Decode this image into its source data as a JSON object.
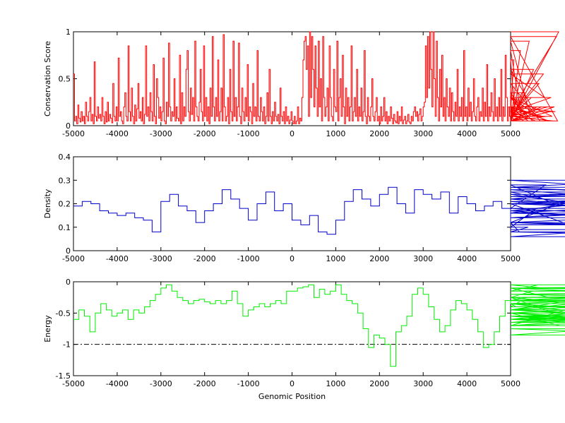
{
  "chart_data": [
    {
      "type": "line",
      "ylabel": "Conservation Score",
      "xlabel": "",
      "xlim": [
        -5000,
        5000
      ],
      "ylim": [
        0,
        1
      ],
      "xticks": [
        "-5000",
        "-4000",
        "-3000",
        "-2000",
        "-1000",
        "0",
        "1000",
        "2000",
        "3000",
        "4000",
        "5000"
      ],
      "yticks": [
        "0",
        "0.5",
        "1"
      ],
      "ytick_values": [
        0,
        0.5,
        1
      ],
      "series": [
        {
          "color": "#ff0000",
          "x_step": 25,
          "x_start": -5000,
          "values": [
            0.55,
            0.05,
            0.1,
            0.02,
            0.22,
            0.08,
            0.04,
            0.15,
            0.05,
            0.1,
            0.02,
            0.25,
            0.1,
            0.05,
            0.15,
            0.3,
            0.05,
            0.12,
            0.02,
            0.68,
            0.1,
            0.05,
            0.2,
            0.08,
            0.12,
            0.05,
            0.3,
            0.1,
            0.02,
            0.15,
            0.04,
            0.25,
            0.05,
            0.12,
            0.08,
            0.03,
            0.45,
            0.1,
            0.05,
            0.2,
            0.05,
            0.72,
            0.1,
            0.15,
            0.05,
            0.02,
            0.2,
            0.35,
            0.1,
            0.05,
            0.85,
            0.15,
            0.05,
            0.4,
            0.1,
            0.02,
            0.22,
            0.05,
            0.18,
            0.45,
            0.08,
            0.15,
            0.05,
            0.3,
            0.02,
            0.12,
            0.85,
            0.1,
            0.2,
            0.05,
            0.35,
            0.15,
            0.05,
            0.65,
            0.1,
            0.02,
            0.5,
            0.3,
            0.08,
            0.2,
            0.05,
            0.15,
            0.72,
            0.05,
            0.02,
            0.25,
            0.1,
            0.88,
            0.2,
            0.05,
            0.15,
            0.1,
            0.5,
            0.05,
            0.2,
            0.08,
            0.05,
            0.75,
            0.02,
            0.35,
            0.05,
            0.2,
            0.1,
            0.6,
            0.8,
            0.15,
            0.05,
            0.4,
            0.12,
            0.3,
            0.05,
            0.9,
            0.2,
            0.1,
            0.05,
            0.25,
            0.6,
            0.15,
            0.05,
            0.85,
            0.1,
            0.3,
            0.05,
            0.2,
            0.02,
            0.4,
            0.1,
            0.95,
            0.2,
            0.05,
            0.3,
            0.1,
            0.7,
            0.05,
            0.15,
            0.4,
            0.05,
            0.97,
            0.2,
            0.05,
            0.1,
            0.3,
            0.02,
            0.6,
            0.15,
            0.05,
            0.9,
            0.1,
            0.3,
            0.05,
            0.2,
            0.88,
            0.1,
            0.02,
            0.4,
            0.15,
            0.05,
            0.3,
            0.1,
            0.65,
            0.05,
            0.2,
            0.15,
            0.02,
            0.45,
            0.1,
            0.2,
            0.05,
            0.8,
            0.1,
            0.05,
            0.3,
            0.15,
            0.05,
            0.2,
            0.02,
            0.1,
            0.35,
            0.05,
            0.6,
            0.1,
            0.02,
            0.15,
            0.05,
            0.25,
            0.1,
            0.05,
            0.12,
            0.02,
            0.4,
            0.1,
            0.05,
            0.15,
            0.02,
            0.2,
            0.05,
            0.1,
            0.02,
            0.06,
            0.15,
            0.05,
            0.02,
            0.1,
            0.02,
            0.05,
            0.2,
            0.02,
            0.08,
            0.05,
            0.3,
            0.7,
            0.9,
            0.95,
            0.6,
            0.85,
            0.1,
            1.0,
            0.3,
            0.95,
            0.6,
            0.2,
            0.85,
            0.4,
            0.1,
            0.9,
            0.2,
            0.5,
            0.05,
            0.95,
            0.3,
            0.1,
            0.2,
            0.4,
            0.05,
            0.85,
            0.3,
            0.1,
            0.05,
            0.6,
            0.2,
            0.15,
            0.9,
            0.05,
            0.3,
            0.5,
            0.1,
            0.75,
            0.2,
            0.02,
            0.4,
            0.1,
            0.3,
            0.05,
            0.2,
            0.85,
            0.05,
            0.15,
            0.3,
            0.1,
            0.6,
            0.05,
            0.2,
            0.1,
            0.4,
            0.05,
            0.15,
            0.8,
            0.1,
            0.02,
            0.3,
            0.1,
            0.05,
            0.2,
            0.5,
            0.1,
            0.05,
            0.15,
            0.3,
            0.05,
            0.1,
            0.02,
            0.2,
            0.05,
            0.1,
            0.3,
            0.05,
            0.15,
            0.02,
            0.1,
            0.05,
            0.2,
            0.08,
            0.02,
            0.12,
            0.05,
            0.03,
            0.15,
            0.02,
            0.1,
            0.05,
            0.2,
            0.02,
            0.06,
            0.1,
            0.02,
            0.05,
            0.12,
            0.04,
            0.02,
            0.1,
            0.05,
            0.15,
            0.2,
            0.1,
            0.15,
            0.05,
            0.12,
            0.18,
            0.05,
            0.1,
            0.2,
            0.25,
            0.85,
            0.3,
            0.95,
            0.4,
            1.0,
            0.6,
            0.2,
            1.0,
            0.5,
            0.1,
            0.9,
            0.3,
            0.05,
            0.6,
            0.2,
            0.75,
            0.1,
            0.3,
            0.05,
            0.5,
            0.2,
            0.1,
            0.4,
            0.05,
            0.35,
            0.15,
            0.05,
            0.25,
            0.1,
            0.6,
            0.05,
            0.2,
            0.1,
            0.3,
            0.05,
            0.8,
            0.1,
            0.2,
            0.05,
            0.4,
            0.1,
            0.25,
            0.05,
            0.15,
            0.5,
            0.1,
            0.05,
            0.2,
            0.3,
            0.05,
            0.15,
            0.1,
            0.4,
            0.05,
            0.25,
            0.1,
            0.65,
            0.05,
            0.2,
            0.1,
            0.35,
            0.15,
            0.05,
            0.5,
            0.1,
            0.2,
            0.05,
            0.3,
            0.1,
            0.6,
            0.05,
            0.2,
            0.1,
            0.75,
            0.3,
            0.05,
            0.2,
            0.1,
            0.4,
            0.05,
            0.15,
            0.7,
            0.1,
            0.05,
            0.3,
            0.2,
            0.05,
            0.8,
            0.1,
            0.15,
            0.05,
            0.35,
            0.1,
            0.2,
            0.05,
            0.9,
            0.1,
            0.3,
            0.05,
            0.6,
            0.15,
            0.05,
            0.2,
            0.1,
            0.45,
            0.05,
            0.2,
            0.1,
            0.55,
            0.3,
            0.05,
            0.1,
            0.2,
            0.05,
            0.15,
            0.3,
            0.1,
            0.05,
            0.2,
            0.15,
            0.95,
            0.05,
            1.0
          ]
        }
      ]
    },
    {
      "type": "line",
      "ylabel": "Density",
      "xlabel": "",
      "xlim": [
        -5000,
        5000
      ],
      "ylim": [
        0,
        0.4
      ],
      "xticks": [
        "-5000",
        "-4000",
        "-3000",
        "-2000",
        "-1000",
        "0",
        "1000",
        "2000",
        "3000",
        "4000",
        "5000"
      ],
      "yticks": [
        "0",
        "0.1",
        "0.2",
        "0.3",
        "0.4"
      ],
      "ytick_values": [
        0,
        0.1,
        0.2,
        0.3,
        0.4
      ],
      "series": [
        {
          "color": "#0000cc",
          "x_step": 200,
          "x_start": -5000,
          "values": [
            0.19,
            0.21,
            0.2,
            0.17,
            0.16,
            0.15,
            0.16,
            0.14,
            0.13,
            0.08,
            0.21,
            0.24,
            0.19,
            0.17,
            0.12,
            0.17,
            0.2,
            0.26,
            0.22,
            0.18,
            0.13,
            0.2,
            0.25,
            0.17,
            0.2,
            0.13,
            0.11,
            0.15,
            0.08,
            0.07,
            0.13,
            0.21,
            0.26,
            0.22,
            0.19,
            0.24,
            0.27,
            0.2,
            0.16,
            0.26,
            0.24,
            0.22,
            0.25,
            0.16,
            0.23,
            0.2,
            0.17,
            0.19,
            0.21,
            0.18,
            0.12,
            0.08,
            0.1,
            0.18,
            0.28,
            0.2,
            0.12,
            0.22,
            0.25,
            0.18,
            0.16,
            0.23,
            0.24,
            0.17,
            0.22,
            0.27,
            0.3,
            0.26,
            0.21,
            0.16,
            0.2,
            0.17,
            0.11,
            0.12,
            0.16,
            0.14,
            0.2,
            0.23,
            0.27,
            0.22,
            0.12,
            0.08,
            0.06,
            0.14,
            0.2,
            0.27,
            0.2,
            0.16,
            0.12,
            0.09
          ]
        }
      ]
    },
    {
      "type": "line",
      "ylabel": "Energy",
      "xlabel": "Genomic Position",
      "xlim": [
        -5000,
        5000
      ],
      "ylim": [
        -1.5,
        0
      ],
      "xticks": [
        "-5000",
        "-4000",
        "-3000",
        "-2000",
        "-1000",
        "0",
        "1000",
        "2000",
        "3000",
        "4000",
        "5000"
      ],
      "yticks": [
        "0",
        "-0.5",
        "-1",
        "-1.5"
      ],
      "ytick_values": [
        0,
        -0.5,
        -1,
        -1.5
      ],
      "reference_line": {
        "y": -1,
        "style": "dash-dot",
        "color": "#000000"
      },
      "series": [
        {
          "color": "#00ee00",
          "x_step": 125,
          "x_start": -5000,
          "values": [
            -0.6,
            -0.45,
            -0.55,
            -0.8,
            -0.5,
            -0.35,
            -0.45,
            -0.55,
            -0.5,
            -0.45,
            -0.6,
            -0.45,
            -0.5,
            -0.4,
            -0.3,
            -0.2,
            -0.1,
            -0.05,
            -0.15,
            -0.25,
            -0.3,
            -0.35,
            -0.3,
            -0.28,
            -0.32,
            -0.35,
            -0.3,
            -0.35,
            -0.3,
            -0.15,
            -0.35,
            -0.55,
            -0.45,
            -0.4,
            -0.35,
            -0.4,
            -0.35,
            -0.3,
            -0.35,
            -0.15,
            -0.15,
            -0.1,
            -0.08,
            -0.05,
            -0.25,
            -0.12,
            -0.2,
            -0.15,
            -0.05,
            -0.2,
            -0.3,
            -0.35,
            -0.5,
            -0.75,
            -1.05,
            -0.85,
            -0.9,
            -1.0,
            -1.35,
            -0.8,
            -0.7,
            -0.55,
            -0.2,
            -0.1,
            -0.2,
            -0.4,
            -0.6,
            -0.8,
            -0.7,
            -0.45,
            -0.3,
            -0.35,
            -0.45,
            -0.6,
            -0.8,
            -1.05,
            -1.0,
            -0.8,
            -0.55,
            -0.3,
            -0.35,
            -0.4,
            -0.3,
            -0.25,
            -0.15,
            -0.05,
            -0.1,
            -0.25,
            -0.5,
            -0.7,
            -0.45,
            -0.3,
            -0.25,
            -0.35,
            -0.5,
            -0.6,
            -0.45,
            -0.3,
            -0.35,
            -0.45,
            -0.55,
            -0.5,
            -0.6,
            -0.7,
            -0.55,
            -0.6,
            -0.65,
            -0.45,
            -0.55,
            -0.6,
            -0.5,
            -0.35,
            -0.55,
            -0.75,
            -0.85,
            -0.65,
            -0.55,
            -0.7,
            -0.6,
            -0.55,
            -0.45,
            -0.3,
            -0.4,
            -0.35,
            -0.2,
            -0.3,
            -0.15,
            -0.1,
            -0.15,
            -0.1,
            -0.3,
            -0.25,
            -0.2,
            -0.15,
            -0.1,
            -0.05
          ]
        }
      ]
    }
  ]
}
